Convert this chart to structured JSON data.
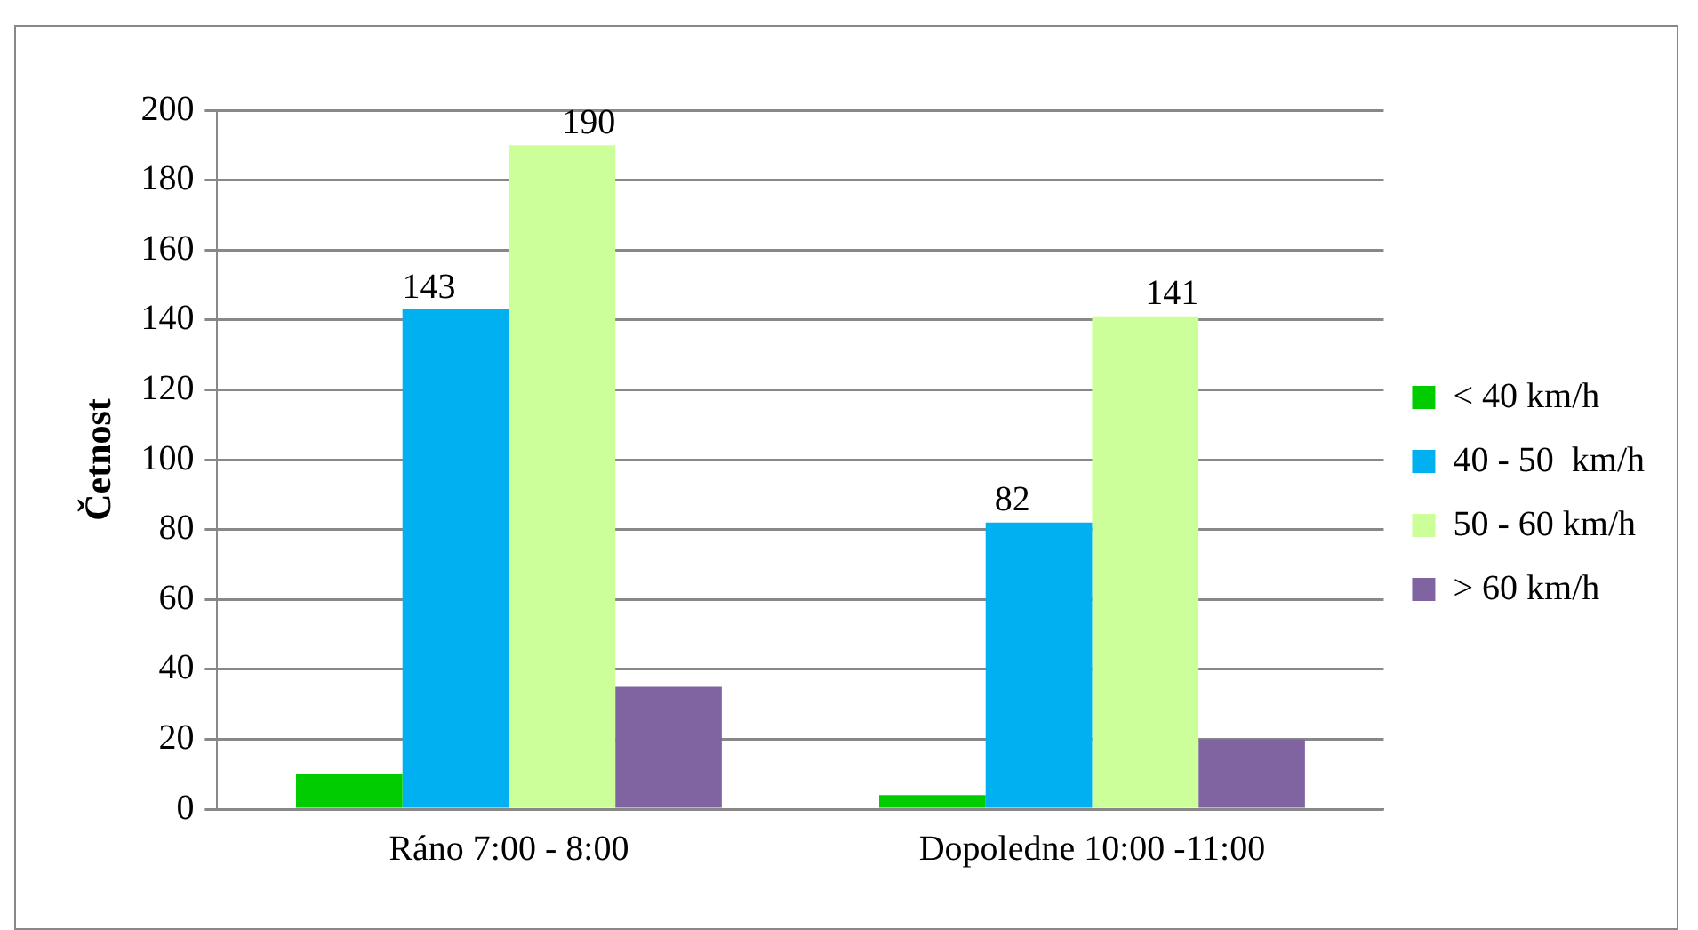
{
  "chart_data": {
    "type": "bar",
    "ylabel": "Četnost",
    "categories": [
      "Ráno 7:00 - 8:00",
      "Dopoledne 10:00 -11:00"
    ],
    "series": [
      {
        "name": "< 40 km/h",
        "color": "#00cc00",
        "values": [
          10,
          4
        ]
      },
      {
        "name": "40 - 50  km/h",
        "color": "#00b0f0",
        "values": [
          143,
          82
        ],
        "value_labels": [
          "143",
          "82"
        ]
      },
      {
        "name": "50 - 60 km/h",
        "color": "#ccff99",
        "values": [
          190,
          141
        ],
        "value_labels": [
          "190",
          "141"
        ]
      },
      {
        "name": "> 60 km/h",
        "color": "#8064a2",
        "values": [
          35,
          20
        ]
      }
    ],
    "ylim": [
      0,
      200
    ],
    "yticks": [
      0,
      20,
      40,
      60,
      80,
      100,
      120,
      140,
      160,
      180,
      200
    ],
    "grid": "y",
    "legend": "right"
  }
}
